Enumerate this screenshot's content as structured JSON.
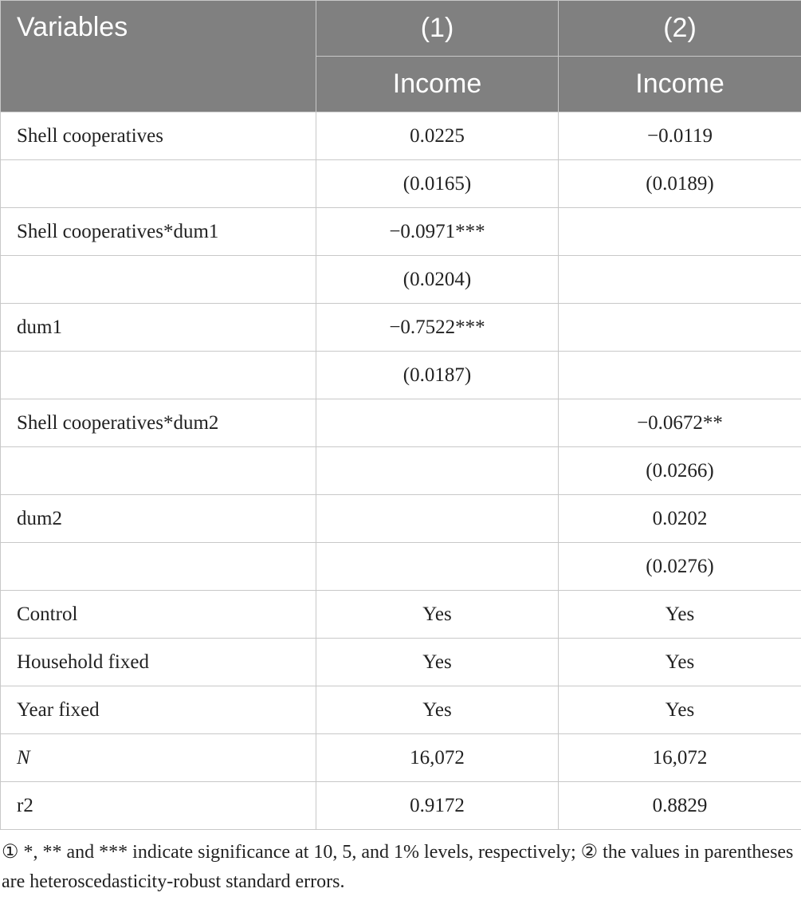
{
  "table": {
    "header": {
      "title": "Variables",
      "columns": [
        "(1)",
        "(2)"
      ],
      "dependent": [
        "Income",
        "Income"
      ]
    },
    "rows": [
      [
        "Shell cooperatives",
        "0.0225",
        "−0.0119"
      ],
      [
        null,
        "(0.0165)",
        "(0.0189)"
      ],
      [
        "Shell cooperatives*dum1",
        "−0.0971***",
        null
      ],
      [
        null,
        "(0.0204)",
        null
      ],
      [
        "dum1",
        "−0.7522***",
        null
      ],
      [
        null,
        "(0.0187)",
        null
      ],
      [
        "Shell cooperatives*dum2",
        null,
        "−0.0672**"
      ],
      [
        null,
        null,
        "(0.0266)"
      ],
      [
        "dum2",
        null,
        "0.0202"
      ],
      [
        null,
        null,
        "(0.0276)"
      ],
      [
        "Control",
        "Yes",
        "Yes"
      ],
      [
        "Household fixed",
        "Yes",
        "Yes"
      ],
      [
        "Year fixed",
        "Yes",
        "Yes"
      ],
      [
        "N",
        "16,072",
        "16,072"
      ],
      [
        "r2",
        "0.9172",
        "0.8829"
      ]
    ],
    "footnote": "① *, ** and *** indicate significance at 10, 5, and 1% levels, respectively; ② the values in parentheses are heteroscedasticity-robust standard errors."
  }
}
